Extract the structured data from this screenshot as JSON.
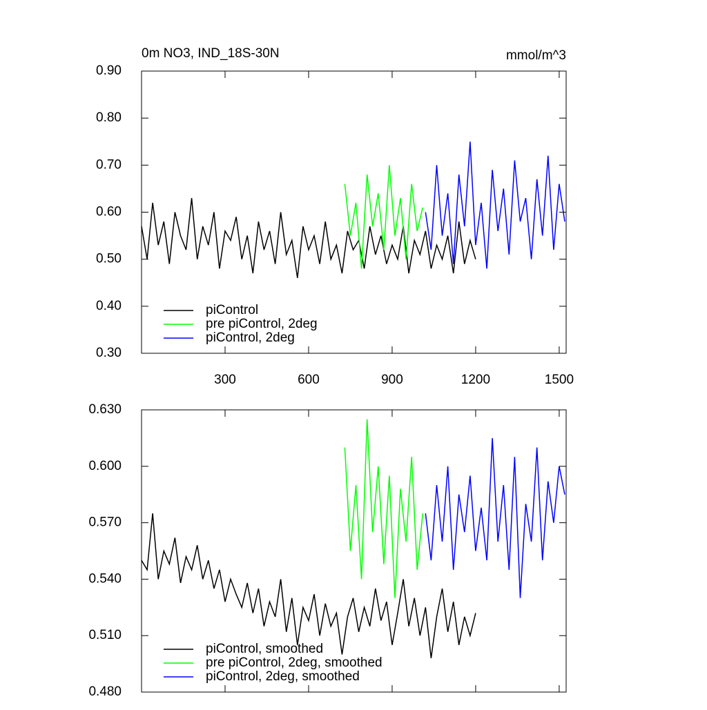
{
  "chart_data": [
    {
      "type": "line",
      "title": "0m NO3, IND_18S-30N",
      "units": "mmol/m^3",
      "xlim": [
        0,
        1525
      ],
      "xticks": [
        300,
        600,
        900,
        1200,
        1500
      ],
      "ylim": [
        0.3,
        0.9
      ],
      "yticks": [
        {
          "value": 0.3,
          "label": "0.30"
        },
        {
          "value": 0.4,
          "label": "0.40"
        },
        {
          "value": 0.5,
          "label": "0.50"
        },
        {
          "value": 0.6,
          "label": "0.60"
        },
        {
          "value": 0.7,
          "label": "0.70"
        },
        {
          "value": 0.8,
          "label": "0.80"
        },
        {
          "value": 0.9,
          "label": "0.90"
        }
      ],
      "series": [
        {
          "name": "piControl",
          "color": "#000000",
          "x": [
            0,
            20,
            40,
            60,
            80,
            100,
            120,
            140,
            160,
            180,
            200,
            220,
            240,
            260,
            280,
            300,
            320,
            340,
            360,
            380,
            400,
            420,
            440,
            460,
            480,
            500,
            520,
            540,
            560,
            580,
            600,
            620,
            640,
            660,
            680,
            700,
            720,
            740,
            760,
            780,
            800,
            820,
            840,
            860,
            880,
            900,
            920,
            940,
            960,
            980,
            1000,
            1020,
            1040,
            1060,
            1080,
            1100,
            1120,
            1140,
            1160,
            1180,
            1200
          ],
          "values": [
            0.57,
            0.5,
            0.62,
            0.53,
            0.58,
            0.49,
            0.6,
            0.55,
            0.52,
            0.63,
            0.5,
            0.57,
            0.53,
            0.6,
            0.48,
            0.56,
            0.54,
            0.59,
            0.5,
            0.55,
            0.47,
            0.58,
            0.52,
            0.56,
            0.49,
            0.6,
            0.51,
            0.54,
            0.46,
            0.57,
            0.52,
            0.55,
            0.49,
            0.58,
            0.5,
            0.53,
            0.47,
            0.56,
            0.52,
            0.54,
            0.48,
            0.57,
            0.51,
            0.55,
            0.49,
            0.53,
            0.5,
            0.57,
            0.47,
            0.54,
            0.51,
            0.56,
            0.48,
            0.53,
            0.5,
            0.55,
            0.47,
            0.58,
            0.49,
            0.54,
            0.5
          ]
        },
        {
          "name": "pre piControl, 2deg",
          "color": "#00ff00",
          "x": [
            730,
            750,
            770,
            790,
            810,
            830,
            850,
            870,
            890,
            910,
            930,
            950,
            970,
            990,
            1010
          ],
          "values": [
            0.66,
            0.55,
            0.62,
            0.48,
            0.68,
            0.57,
            0.64,
            0.52,
            0.7,
            0.55,
            0.63,
            0.5,
            0.66,
            0.56,
            0.61
          ]
        },
        {
          "name": "piControl, 2deg",
          "color": "#0000ff",
          "x": [
            1020,
            1040,
            1060,
            1080,
            1100,
            1120,
            1140,
            1160,
            1180,
            1200,
            1220,
            1240,
            1260,
            1280,
            1300,
            1320,
            1340,
            1360,
            1380,
            1400,
            1420,
            1440,
            1460,
            1480,
            1500,
            1520
          ],
          "values": [
            0.6,
            0.52,
            0.7,
            0.55,
            0.64,
            0.49,
            0.68,
            0.57,
            0.75,
            0.53,
            0.62,
            0.48,
            0.69,
            0.56,
            0.65,
            0.51,
            0.71,
            0.58,
            0.63,
            0.5,
            0.67,
            0.55,
            0.72,
            0.52,
            0.66,
            0.58
          ]
        }
      ]
    },
    {
      "type": "line",
      "xlim": [
        0,
        1525
      ],
      "xticks": [
        300,
        600,
        900,
        1200,
        1500
      ],
      "ylim": [
        0.48,
        0.63
      ],
      "yticks": [
        {
          "value": 0.48,
          "label": "0.480"
        },
        {
          "value": 0.51,
          "label": "0.510"
        },
        {
          "value": 0.54,
          "label": "0.540"
        },
        {
          "value": 0.57,
          "label": "0.570"
        },
        {
          "value": 0.6,
          "label": "0.600"
        },
        {
          "value": 0.63,
          "label": "0.630"
        }
      ],
      "series": [
        {
          "name": "piControl, smoothed",
          "color": "#000000",
          "x": [
            0,
            20,
            40,
            60,
            80,
            100,
            120,
            140,
            160,
            180,
            200,
            220,
            240,
            260,
            280,
            300,
            320,
            340,
            360,
            380,
            400,
            420,
            440,
            460,
            480,
            500,
            520,
            540,
            560,
            580,
            600,
            620,
            640,
            660,
            680,
            700,
            720,
            740,
            760,
            780,
            800,
            820,
            840,
            860,
            880,
            900,
            920,
            940,
            960,
            980,
            1000,
            1020,
            1040,
            1060,
            1080,
            1100,
            1120,
            1140,
            1160,
            1180,
            1200
          ],
          "values": [
            0.55,
            0.545,
            0.575,
            0.54,
            0.555,
            0.548,
            0.562,
            0.538,
            0.552,
            0.545,
            0.558,
            0.54,
            0.55,
            0.535,
            0.545,
            0.528,
            0.54,
            0.532,
            0.525,
            0.538,
            0.522,
            0.535,
            0.515,
            0.528,
            0.52,
            0.54,
            0.512,
            0.53,
            0.505,
            0.525,
            0.518,
            0.532,
            0.51,
            0.527,
            0.515,
            0.522,
            0.5,
            0.52,
            0.53,
            0.512,
            0.525,
            0.515,
            0.535,
            0.518,
            0.528,
            0.505,
            0.522,
            0.54,
            0.515,
            0.53,
            0.51,
            0.525,
            0.498,
            0.52,
            0.535,
            0.512,
            0.528,
            0.505,
            0.52,
            0.51,
            0.522
          ]
        },
        {
          "name": "pre piControl, 2deg, smoothed",
          "color": "#00ff00",
          "x": [
            730,
            750,
            770,
            790,
            810,
            830,
            850,
            870,
            890,
            910,
            930,
            950,
            970,
            990,
            1010
          ],
          "values": [
            0.61,
            0.555,
            0.59,
            0.54,
            0.625,
            0.565,
            0.6,
            0.548,
            0.595,
            0.53,
            0.588,
            0.56,
            0.605,
            0.545,
            0.575
          ]
        },
        {
          "name": "piControl, 2deg, smoothed",
          "color": "#0000ff",
          "x": [
            1020,
            1040,
            1060,
            1080,
            1100,
            1120,
            1140,
            1160,
            1180,
            1200,
            1220,
            1240,
            1260,
            1280,
            1300,
            1320,
            1340,
            1360,
            1380,
            1400,
            1420,
            1440,
            1460,
            1480,
            1500,
            1520
          ],
          "values": [
            0.575,
            0.55,
            0.59,
            0.56,
            0.6,
            0.545,
            0.585,
            0.565,
            0.595,
            0.555,
            0.578,
            0.55,
            0.615,
            0.56,
            0.59,
            0.545,
            0.605,
            0.53,
            0.58,
            0.56,
            0.61,
            0.55,
            0.592,
            0.57,
            0.6,
            0.585
          ]
        }
      ]
    }
  ]
}
